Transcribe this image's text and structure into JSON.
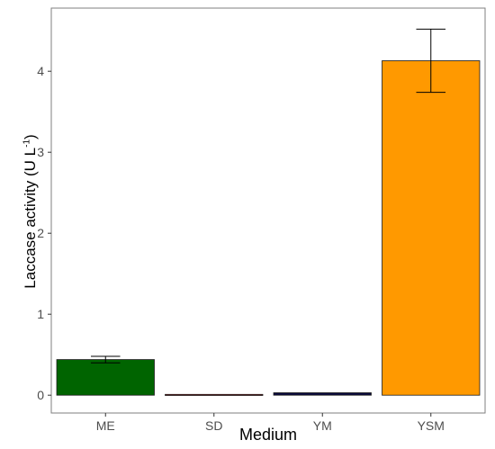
{
  "chart_data": {
    "type": "bar",
    "categories": [
      "ME",
      "SD",
      "YM",
      "YSM"
    ],
    "values": [
      0.44,
      0.01,
      0.03,
      4.13
    ],
    "errors": [
      0.04,
      0.0,
      0.0,
      0.39
    ],
    "colors": [
      "#006400",
      "#8b1a1a",
      "#0a0a3c",
      "#ff9900"
    ],
    "xlabel": "Medium",
    "ylabel": {
      "main": "Laccase activity (U L",
      "sup": "-1",
      "close": ")"
    },
    "ylim": [
      -0.22,
      4.78
    ],
    "yticks": [
      0,
      1,
      2,
      3,
      4
    ],
    "grid": false
  }
}
